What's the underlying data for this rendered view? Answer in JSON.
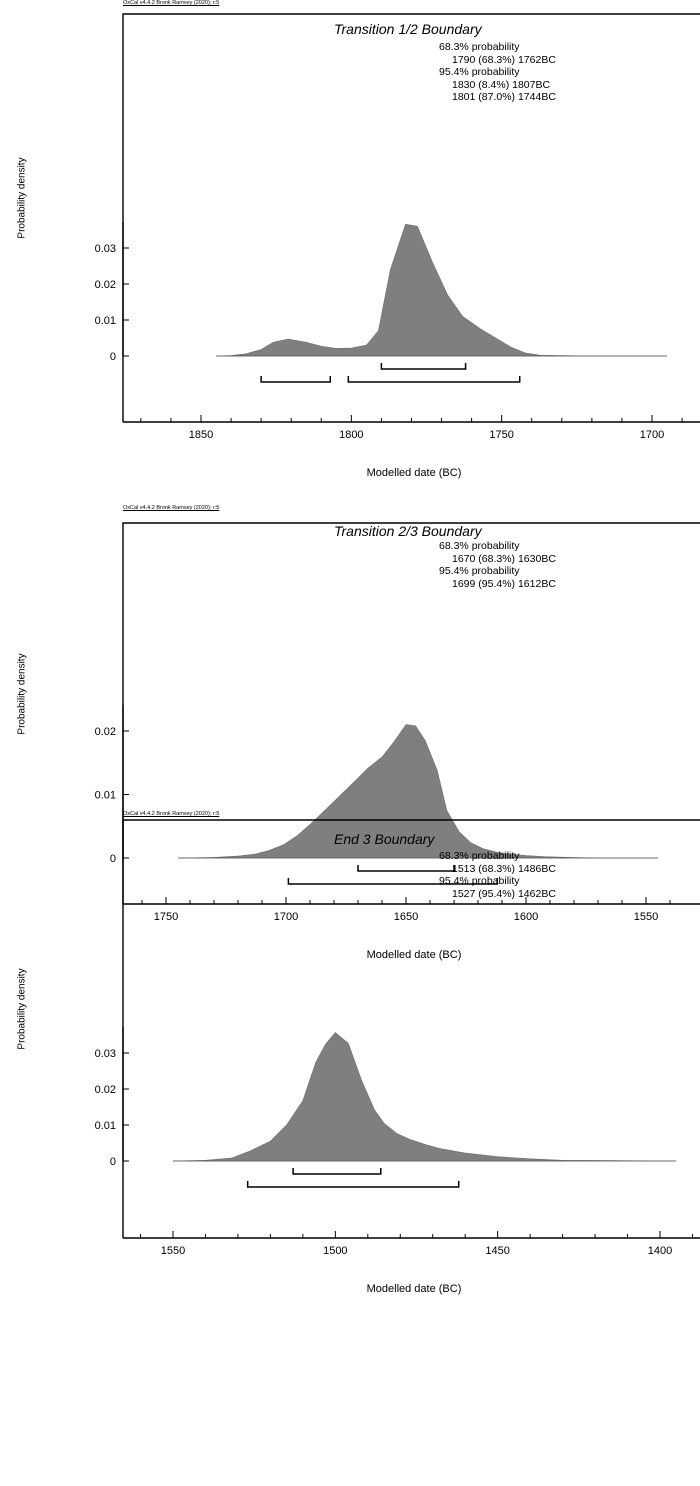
{
  "chart_data": [
    {
      "type": "area",
      "credit": "OxCal v4.4.2 Bronk Ramsey (2020); r:5",
      "title": "Transition 1/2 Boundary",
      "xlabel": "Modelled date (BC)",
      "ylabel": "Probability density",
      "xlim": [
        1880,
        1690
      ],
      "x_ticks": [
        1850,
        1800,
        1750,
        1700
      ],
      "y_ticks": [
        0,
        0.01,
        0.02,
        0.03
      ],
      "ylim": [
        -0.01,
        0.037
      ],
      "probability_lines": [
        "68.3% probability",
        "1790 (68.3%) 1762BC",
        "95.4% probability",
        "1830 (8.4%) 1807BC",
        "1801 (87.0%) 1744BC"
      ],
      "x": [
        1845,
        1840,
        1835,
        1830,
        1826,
        1821,
        1815,
        1810,
        1805,
        1800,
        1795,
        1791,
        1787,
        1782,
        1778,
        1773,
        1768,
        1763,
        1757,
        1752,
        1747,
        1742,
        1737,
        1720,
        1695
      ],
      "y": [
        0,
        0.0001,
        0.0006,
        0.0018,
        0.0038,
        0.0047,
        0.0038,
        0.0027,
        0.0021,
        0.0022,
        0.003,
        0.007,
        0.024,
        0.0366,
        0.036,
        0.026,
        0.017,
        0.011,
        0.0075,
        0.005,
        0.0025,
        0.0008,
        0.0002,
        0,
        0
      ],
      "ranges_68": [
        [
          1790,
          1762
        ]
      ],
      "ranges_95": [
        [
          1830,
          1807
        ],
        [
          1801,
          1744
        ]
      ]
    },
    {
      "type": "area",
      "credit": "OxCal v4.4.2 Bronk Ramsey (2020); r:5",
      "title": "Transition 2/3 Boundary",
      "xlabel": "Modelled date (BC)",
      "ylabel": "Probability density",
      "xlim": [
        1760,
        1540
      ],
      "x_ticks": [
        1750,
        1700,
        1650,
        1600,
        1550
      ],
      "y_ticks": [
        0,
        0.01,
        0.02
      ],
      "ylim": [
        -0.008,
        0.024
      ],
      "probability_lines": [
        "68.3% probability",
        "1670 (68.3%) 1630BC",
        "95.4% probability",
        "1699 (95.4%) 1612BC"
      ],
      "x": [
        1745,
        1730,
        1720,
        1713,
        1707,
        1701,
        1695,
        1689,
        1683,
        1677,
        1671,
        1666,
        1660,
        1655,
        1650,
        1646,
        1642,
        1637,
        1633,
        1628,
        1623,
        1618,
        1612,
        1606,
        1600,
        1592,
        1582,
        1570,
        1545
      ],
      "y": [
        0,
        0.0001,
        0.0003,
        0.0006,
        0.0012,
        0.0021,
        0.0036,
        0.0056,
        0.0078,
        0.01,
        0.0122,
        0.0141,
        0.0159,
        0.0183,
        0.021,
        0.0208,
        0.0185,
        0.0138,
        0.0075,
        0.0042,
        0.0024,
        0.0015,
        0.0009,
        0.0006,
        0.0004,
        0.0002,
        0.0001,
        0,
        0
      ],
      "ranges_68": [
        [
          1670,
          1630
        ]
      ],
      "ranges_95": [
        [
          1699,
          1612
        ]
      ]
    },
    {
      "type": "area",
      "credit": "OxCal v4.4.2 Bronk Ramsey (2020); r:5",
      "title": "End 3 Boundary",
      "xlabel": "Modelled date (BC)",
      "ylabel": "Probability density",
      "xlim": [
        1565,
        1390
      ],
      "x_ticks": [
        1550,
        1500,
        1450,
        1400
      ],
      "y_ticks": [
        0,
        0.01,
        0.02,
        0.03
      ],
      "ylim": [
        -0.01,
        0.038
      ],
      "probability_lines": [
        "68.3% probability",
        "1513 (68.3%) 1486BC",
        "95.4% probability",
        "1527 (95.4%) 1462BC"
      ],
      "x": [
        1550,
        1540,
        1532,
        1526,
        1520,
        1515,
        1510,
        1506,
        1503,
        1500,
        1496,
        1492,
        1488,
        1485,
        1481,
        1477,
        1472,
        1468,
        1460,
        1450,
        1440,
        1430,
        1415,
        1395
      ],
      "y": [
        0,
        0.0002,
        0.0008,
        0.0029,
        0.0055,
        0.01,
        0.0168,
        0.0275,
        0.0325,
        0.0357,
        0.0327,
        0.0226,
        0.0143,
        0.0105,
        0.0076,
        0.006,
        0.0045,
        0.0035,
        0.0022,
        0.0012,
        0.0006,
        0.0002,
        0.0001,
        0
      ],
      "ranges_68": [
        [
          1513,
          1486
        ]
      ],
      "ranges_95": [
        [
          1527,
          1462
        ]
      ]
    }
  ]
}
